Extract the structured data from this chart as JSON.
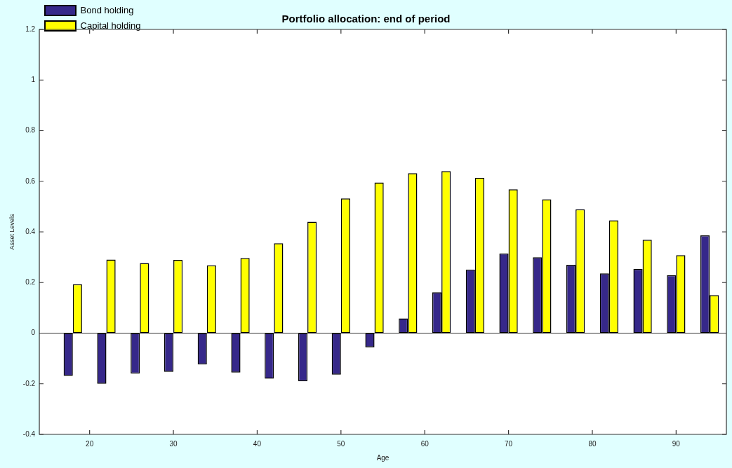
{
  "chart_data": {
    "type": "bar",
    "title": "Portfolio allocation: end of period",
    "xlabel": "Age",
    "ylabel": "Asset Levels",
    "x": [
      18,
      22,
      26,
      30,
      34,
      38,
      42,
      46,
      50,
      54,
      58,
      62,
      66,
      70,
      74,
      78,
      82,
      86,
      90,
      94
    ],
    "series": [
      {
        "name": "Bond holding",
        "color": "#36288a",
        "values": [
          -0.169,
          -0.2,
          -0.16,
          -0.153,
          -0.124,
          -0.156,
          -0.18,
          -0.19,
          -0.164,
          -0.056,
          0.058,
          0.161,
          0.251,
          0.315,
          0.3,
          0.27,
          0.236,
          0.253,
          0.229,
          0.386
        ]
      },
      {
        "name": "Capital holding",
        "color": "#ffff00",
        "values": [
          0.193,
          0.291,
          0.277,
          0.289,
          0.268,
          0.297,
          0.355,
          0.44,
          0.532,
          0.595,
          0.632,
          0.64,
          0.614,
          0.568,
          0.529,
          0.489,
          0.446,
          0.369,
          0.308,
          0.15
        ]
      }
    ],
    "xlim": [
      14,
      96
    ],
    "xticks": [
      20,
      30,
      40,
      50,
      60,
      70,
      80,
      90
    ],
    "ylim": [
      -0.4,
      1.2
    ],
    "yticks": [
      -0.4,
      -0.2,
      0,
      0.2,
      0.4,
      0.6,
      0.8,
      1,
      1.2
    ],
    "ref_lines": [
      {
        "axis": "y",
        "value": 0
      }
    ],
    "grid": false,
    "legend": "top left"
  }
}
